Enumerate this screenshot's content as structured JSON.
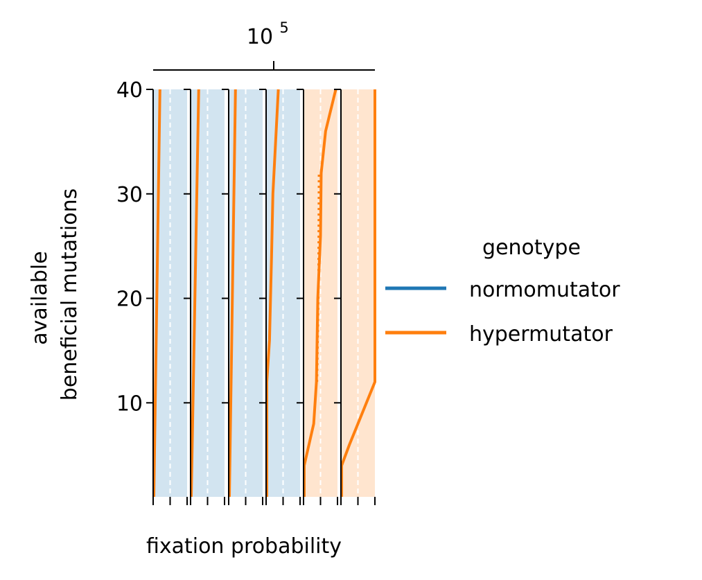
{
  "chart_data": {
    "type": "line",
    "top_axis_label": "10",
    "top_axis_label_exponent": "5",
    "xlabel": "fixation probability",
    "ylabel_line1": "available",
    "ylabel_line2": "beneficial mutations",
    "ylim": [
      1,
      40
    ],
    "y_ticks": [
      "10",
      "20",
      "30",
      "40"
    ],
    "xlim": [
      0,
      1
    ],
    "grid": false,
    "legend": {
      "title": "genotype",
      "placement": "center-right",
      "entries": [
        {
          "label": "normomutator",
          "color": "#1f77b4"
        },
        {
          "label": "hypermutator",
          "color": "#ff7f0e"
        }
      ]
    },
    "colors": {
      "normomutator": "#1f77b4",
      "hypermutator": "#ff7f0e"
    },
    "panels": [
      {
        "normo_fill": 1.0,
        "hyper_fill": 0.0,
        "hyper_points": [
          [
            0.02,
            1
          ],
          [
            0.2,
            40
          ]
        ],
        "hyper_dotted_points": []
      },
      {
        "normo_fill": 1.0,
        "hyper_fill": 0.0,
        "hyper_points": [
          [
            0.02,
            1
          ],
          [
            0.24,
            40
          ]
        ],
        "hyper_dotted_points": []
      },
      {
        "normo_fill": 1.0,
        "hyper_fill": 0.0,
        "hyper_points": [
          [
            0.02,
            1
          ],
          [
            0.2,
            40
          ]
        ],
        "hyper_dotted_points": []
      },
      {
        "normo_fill": 1.0,
        "hyper_fill": 0.0,
        "hyper_points": [
          [
            0.02,
            1
          ],
          [
            0.02,
            12
          ],
          [
            0.1,
            16
          ],
          [
            0.16,
            24
          ],
          [
            0.2,
            30
          ],
          [
            0.36,
            40
          ]
        ],
        "hyper_dotted_points": []
      },
      {
        "normo_fill": 0.0,
        "hyper_fill": 1.0,
        "hyper_points": [
          [
            0.02,
            1
          ],
          [
            0.02,
            4
          ],
          [
            0.3,
            8
          ],
          [
            0.38,
            12
          ],
          [
            0.42,
            20
          ],
          [
            0.5,
            26
          ],
          [
            0.52,
            32
          ],
          [
            0.65,
            36
          ],
          [
            0.95,
            40
          ]
        ],
        "hyper_dotted_points": [
          [
            0.4,
            12
          ],
          [
            0.44,
            20
          ],
          [
            0.44,
            24
          ],
          [
            0.45,
            32
          ]
        ]
      },
      {
        "normo_fill": 0.0,
        "hyper_fill": 1.0,
        "hyper_points": [
          [
            0.02,
            1
          ],
          [
            0.02,
            4
          ],
          [
            0.25,
            6
          ],
          [
            0.5,
            8
          ],
          [
            1.0,
            12
          ],
          [
            1.0,
            40
          ]
        ],
        "hyper_dotted_points": []
      }
    ]
  }
}
